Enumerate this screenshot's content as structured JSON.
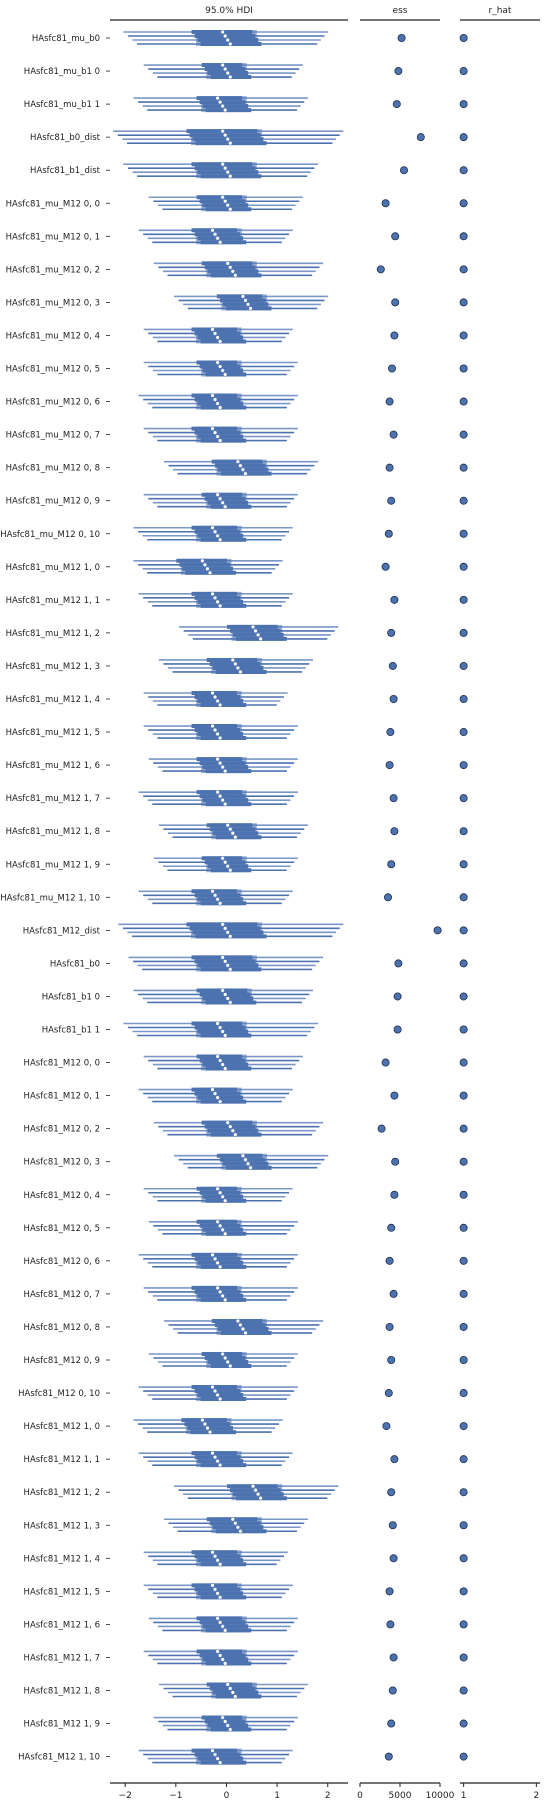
{
  "chart_data": {
    "type": "forest",
    "panels": [
      {
        "title": "95.0% HDI",
        "xlim": [
          -2.3,
          2.4
        ],
        "ticks": [
          "−2",
          "−1",
          "0",
          "1",
          "2"
        ],
        "tick_values": [
          -2,
          -1,
          0,
          1,
          2
        ]
      },
      {
        "title": "ess",
        "xlim": [
          0,
          10000
        ],
        "ticks": [
          "0",
          "5000",
          "10000"
        ],
        "tick_values": [
          0,
          5000,
          10000
        ]
      },
      {
        "title": "r_hat",
        "xlim": [
          0.95,
          2.05
        ],
        "ticks": [
          "1",
          "2"
        ],
        "tick_values": [
          1,
          2
        ]
      }
    ],
    "rows": [
      {
        "label": "HAsfc81_mu_b0",
        "center": 0.0,
        "hdi": [
          -1.9,
          1.9
        ],
        "iqr": [
          -0.6,
          0.6
        ],
        "ess": 5200,
        "r_hat": 1.0
      },
      {
        "label": "HAsfc81_mu_b1 0",
        "center": 0.0,
        "hdi": [
          -1.5,
          1.4
        ],
        "iqr": [
          -0.4,
          0.4
        ],
        "ess": 4800,
        "r_hat": 1.0
      },
      {
        "label": "HAsfc81_mu_b1 1",
        "center": -0.1,
        "hdi": [
          -1.7,
          1.5
        ],
        "iqr": [
          -0.5,
          0.4
        ],
        "ess": 4600,
        "r_hat": 1.0
      },
      {
        "label": "HAsfc81_b0_dist",
        "center": 0.0,
        "hdi": [
          -2.1,
          2.2
        ],
        "iqr": [
          -0.7,
          0.7
        ],
        "ess": 7600,
        "r_hat": 1.0
      },
      {
        "label": "HAsfc81_b1_dist",
        "center": 0.0,
        "hdi": [
          -1.9,
          1.7
        ],
        "iqr": [
          -0.6,
          0.6
        ],
        "ess": 5500,
        "r_hat": 1.0
      },
      {
        "label": "HAsfc81_mu_M12 0, 0",
        "center": 0.0,
        "hdi": [
          -1.4,
          1.4
        ],
        "iqr": [
          -0.5,
          0.4
        ],
        "ess": 3200,
        "r_hat": 1.0
      },
      {
        "label": "HAsfc81_mu_M12 0, 1",
        "center": -0.2,
        "hdi": [
          -1.6,
          1.2
        ],
        "iqr": [
          -0.6,
          0.3
        ],
        "ess": 4400,
        "r_hat": 1.0
      },
      {
        "label": "HAsfc81_mu_M12 0, 2",
        "center": 0.1,
        "hdi": [
          -1.3,
          1.8
        ],
        "iqr": [
          -0.4,
          0.6
        ],
        "ess": 2600,
        "r_hat": 1.0
      },
      {
        "label": "HAsfc81_mu_M12 0, 3",
        "center": 0.4,
        "hdi": [
          -0.9,
          1.9
        ],
        "iqr": [
          -0.1,
          0.8
        ],
        "ess": 4400,
        "r_hat": 1.0
      },
      {
        "label": "HAsfc81_mu_M12 0, 4",
        "center": -0.2,
        "hdi": [
          -1.5,
          1.2
        ],
        "iqr": [
          -0.6,
          0.3
        ],
        "ess": 4300,
        "r_hat": 1.0
      },
      {
        "label": "HAsfc81_mu_M12 0, 5",
        "center": -0.1,
        "hdi": [
          -1.5,
          1.3
        ],
        "iqr": [
          -0.5,
          0.3
        ],
        "ess": 4000,
        "r_hat": 1.0
      },
      {
        "label": "HAsfc81_mu_M12 0, 6",
        "center": -0.2,
        "hdi": [
          -1.6,
          1.3
        ],
        "iqr": [
          -0.6,
          0.3
        ],
        "ess": 3700,
        "r_hat": 1.0
      },
      {
        "label": "HAsfc81_mu_M12 0, 7",
        "center": -0.2,
        "hdi": [
          -1.5,
          1.3
        ],
        "iqr": [
          -0.6,
          0.3
        ],
        "ess": 4200,
        "r_hat": 1.0
      },
      {
        "label": "HAsfc81_mu_M12 0, 8",
        "center": 0.3,
        "hdi": [
          -1.1,
          1.7
        ],
        "iqr": [
          -0.2,
          0.8
        ],
        "ess": 3700,
        "r_hat": 1.0
      },
      {
        "label": "HAsfc81_mu_M12 0, 9",
        "center": -0.1,
        "hdi": [
          -1.5,
          1.3
        ],
        "iqr": [
          -0.4,
          0.4
        ],
        "ess": 3900,
        "r_hat": 1.0
      },
      {
        "label": "HAsfc81_mu_M12 0, 10",
        "center": -0.2,
        "hdi": [
          -1.7,
          1.2
        ],
        "iqr": [
          -0.6,
          0.3
        ],
        "ess": 3600,
        "r_hat": 1.0
      },
      {
        "label": "HAsfc81_mu_M12 1, 0",
        "center": -0.4,
        "hdi": [
          -1.7,
          1.0
        ],
        "iqr": [
          -0.9,
          0.1
        ],
        "ess": 3200,
        "r_hat": 1.0
      },
      {
        "label": "HAsfc81_mu_M12 1, 1",
        "center": -0.2,
        "hdi": [
          -1.6,
          1.2
        ],
        "iqr": [
          -0.6,
          0.3
        ],
        "ess": 4300,
        "r_hat": 1.0
      },
      {
        "label": "HAsfc81_mu_M12 1, 2",
        "center": 0.6,
        "hdi": [
          -0.8,
          2.1
        ],
        "iqr": [
          0.1,
          1.1
        ],
        "ess": 3900,
        "r_hat": 1.0
      },
      {
        "label": "HAsfc81_mu_M12 1, 3",
        "center": 0.2,
        "hdi": [
          -1.2,
          1.6
        ],
        "iqr": [
          -0.3,
          0.7
        ],
        "ess": 4100,
        "r_hat": 1.0
      },
      {
        "label": "HAsfc81_mu_M12 1, 4",
        "center": -0.2,
        "hdi": [
          -1.5,
          1.1
        ],
        "iqr": [
          -0.6,
          0.3
        ],
        "ess": 4200,
        "r_hat": 1.0
      },
      {
        "label": "HAsfc81_mu_M12 1, 5",
        "center": -0.2,
        "hdi": [
          -1.5,
          1.3
        ],
        "iqr": [
          -0.6,
          0.3
        ],
        "ess": 3800,
        "r_hat": 1.0
      },
      {
        "label": "HAsfc81_mu_M12 1, 6",
        "center": -0.1,
        "hdi": [
          -1.4,
          1.3
        ],
        "iqr": [
          -0.5,
          0.4
        ],
        "ess": 3700,
        "r_hat": 1.0
      },
      {
        "label": "HAsfc81_mu_M12 1, 7",
        "center": -0.1,
        "hdi": [
          -1.6,
          1.3
        ],
        "iqr": [
          -0.5,
          0.4
        ],
        "ess": 4200,
        "r_hat": 1.0
      },
      {
        "label": "HAsfc81_mu_M12 1, 8",
        "center": 0.1,
        "hdi": [
          -1.2,
          1.5
        ],
        "iqr": [
          -0.3,
          0.6
        ],
        "ess": 4300,
        "r_hat": 1.0
      },
      {
        "label": "HAsfc81_mu_M12 1, 9",
        "center": 0.0,
        "hdi": [
          -1.3,
          1.3
        ],
        "iqr": [
          -0.4,
          0.4
        ],
        "ess": 3900,
        "r_hat": 1.0
      },
      {
        "label": "HAsfc81_mu_M12 1, 10",
        "center": -0.2,
        "hdi": [
          -1.6,
          1.2
        ],
        "iqr": [
          -0.6,
          0.3
        ],
        "ess": 3500,
        "r_hat": 1.0
      },
      {
        "label": "HAsfc81_M12_dist",
        "center": 0.0,
        "hdi": [
          -2.0,
          2.2
        ],
        "iqr": [
          -0.7,
          0.7
        ],
        "ess": 9700,
        "r_hat": 1.0
      },
      {
        "label": "HAsfc81_b0",
        "center": 0.0,
        "hdi": [
          -1.8,
          1.8
        ],
        "iqr": [
          -0.6,
          0.6
        ],
        "ess": 4800,
        "r_hat": 1.0
      },
      {
        "label": "HAsfc81_b1 0",
        "center": 0.0,
        "hdi": [
          -1.7,
          1.6
        ],
        "iqr": [
          -0.5,
          0.5
        ],
        "ess": 4700,
        "r_hat": 1.0
      },
      {
        "label": "HAsfc81_b1 1",
        "center": -0.1,
        "hdi": [
          -1.9,
          1.7
        ],
        "iqr": [
          -0.6,
          0.4
        ],
        "ess": 4700,
        "r_hat": 1.0
      },
      {
        "label": "HAsfc81_M12 0, 0",
        "center": -0.1,
        "hdi": [
          -1.5,
          1.4
        ],
        "iqr": [
          -0.5,
          0.4
        ],
        "ess": 3200,
        "r_hat": 1.0
      },
      {
        "label": "HAsfc81_M12 0, 1",
        "center": -0.2,
        "hdi": [
          -1.6,
          1.2
        ],
        "iqr": [
          -0.6,
          0.3
        ],
        "ess": 4300,
        "r_hat": 1.0
      },
      {
        "label": "HAsfc81_M12 0, 2",
        "center": 0.1,
        "hdi": [
          -1.3,
          1.8
        ],
        "iqr": [
          -0.4,
          0.6
        ],
        "ess": 2700,
        "r_hat": 1.0
      },
      {
        "label": "HAsfc81_M12 0, 3",
        "center": 0.4,
        "hdi": [
          -0.9,
          1.9
        ],
        "iqr": [
          -0.1,
          0.8
        ],
        "ess": 4400,
        "r_hat": 1.0
      },
      {
        "label": "HAsfc81_M12 0, 4",
        "center": -0.1,
        "hdi": [
          -1.5,
          1.2
        ],
        "iqr": [
          -0.5,
          0.3
        ],
        "ess": 4300,
        "r_hat": 1.0
      },
      {
        "label": "HAsfc81_M12 0, 5",
        "center": -0.1,
        "hdi": [
          -1.4,
          1.3
        ],
        "iqr": [
          -0.5,
          0.3
        ],
        "ess": 3900,
        "r_hat": 1.0
      },
      {
        "label": "HAsfc81_M12 0, 6",
        "center": -0.2,
        "hdi": [
          -1.6,
          1.3
        ],
        "iqr": [
          -0.6,
          0.3
        ],
        "ess": 3700,
        "r_hat": 1.0
      },
      {
        "label": "HAsfc81_M12 0, 7",
        "center": -0.1,
        "hdi": [
          -1.5,
          1.3
        ],
        "iqr": [
          -0.6,
          0.3
        ],
        "ess": 4200,
        "r_hat": 1.0
      },
      {
        "label": "HAsfc81_M12 0, 8",
        "center": 0.3,
        "hdi": [
          -1.1,
          1.8
        ],
        "iqr": [
          -0.2,
          0.8
        ],
        "ess": 3700,
        "r_hat": 1.0
      },
      {
        "label": "HAsfc81_M12 0, 9",
        "center": 0.0,
        "hdi": [
          -1.4,
          1.3
        ],
        "iqr": [
          -0.4,
          0.4
        ],
        "ess": 3900,
        "r_hat": 1.0
      },
      {
        "label": "HAsfc81_M12 0, 10",
        "center": -0.2,
        "hdi": [
          -1.6,
          1.3
        ],
        "iqr": [
          -0.6,
          0.3
        ],
        "ess": 3600,
        "r_hat": 1.0
      },
      {
        "label": "HAsfc81_M12 1, 0",
        "center": -0.4,
        "hdi": [
          -1.7,
          1.0
        ],
        "iqr": [
          -0.8,
          0.1
        ],
        "ess": 3300,
        "r_hat": 1.0
      },
      {
        "label": "HAsfc81_M12 1, 1",
        "center": -0.2,
        "hdi": [
          -1.6,
          1.2
        ],
        "iqr": [
          -0.6,
          0.3
        ],
        "ess": 4300,
        "r_hat": 1.0
      },
      {
        "label": "HAsfc81_M12 1, 2",
        "center": 0.6,
        "hdi": [
          -0.9,
          2.1
        ],
        "iqr": [
          0.1,
          1.1
        ],
        "ess": 3900,
        "r_hat": 1.0
      },
      {
        "label": "HAsfc81_M12 1, 3",
        "center": 0.2,
        "hdi": [
          -1.1,
          1.5
        ],
        "iqr": [
          -0.3,
          0.7
        ],
        "ess": 4100,
        "r_hat": 1.0
      },
      {
        "label": "HAsfc81_M12 1, 4",
        "center": -0.2,
        "hdi": [
          -1.5,
          1.1
        ],
        "iqr": [
          -0.6,
          0.3
        ],
        "ess": 4200,
        "r_hat": 1.0
      },
      {
        "label": "HAsfc81_M12 1, 5",
        "center": -0.2,
        "hdi": [
          -1.5,
          1.2
        ],
        "iqr": [
          -0.6,
          0.3
        ],
        "ess": 3700,
        "r_hat": 1.0
      },
      {
        "label": "HAsfc81_M12 1, 6",
        "center": -0.1,
        "hdi": [
          -1.4,
          1.3
        ],
        "iqr": [
          -0.5,
          0.4
        ],
        "ess": 3800,
        "r_hat": 1.0
      },
      {
        "label": "HAsfc81_M12 1, 7",
        "center": -0.1,
        "hdi": [
          -1.5,
          1.3
        ],
        "iqr": [
          -0.5,
          0.4
        ],
        "ess": 4200,
        "r_hat": 1.0
      },
      {
        "label": "HAsfc81_M12 1, 8",
        "center": 0.1,
        "hdi": [
          -1.2,
          1.5
        ],
        "iqr": [
          -0.3,
          0.6
        ],
        "ess": 4100,
        "r_hat": 1.0
      },
      {
        "label": "HAsfc81_M12 1, 9",
        "center": 0.0,
        "hdi": [
          -1.3,
          1.3
        ],
        "iqr": [
          -0.4,
          0.4
        ],
        "ess": 3900,
        "r_hat": 1.0
      },
      {
        "label": "HAsfc81_M12 1, 10",
        "center": -0.2,
        "hdi": [
          -1.6,
          1.2
        ],
        "iqr": [
          -0.6,
          0.3
        ],
        "ess": 3600,
        "r_hat": 1.0
      }
    ],
    "chains": 4,
    "grid": false,
    "colors": {
      "line": "#4c72b0",
      "line_light": "#7a97c8",
      "marker_fill": "#ffffff",
      "axis": "#222222"
    }
  }
}
